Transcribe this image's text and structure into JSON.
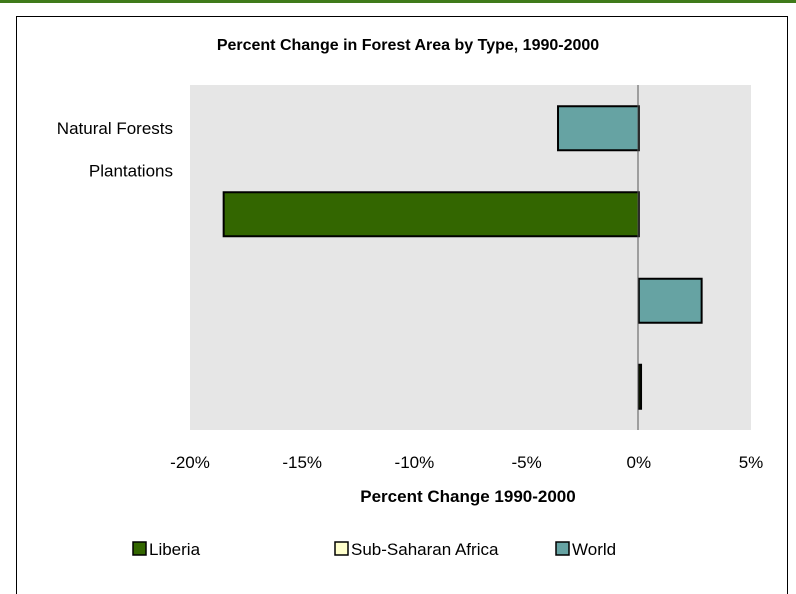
{
  "colors": {
    "plot_bg": "#e6e6e6",
    "liberia": "#336600",
    "ssa": "#ffffcc",
    "world": "#66a3a3",
    "accent_bar": "#3f7a1a"
  },
  "chart_data": {
    "type": "bar",
    "orientation": "horizontal",
    "title": "Percent Change in Forest Area by Type, 1990-2000",
    "xlabel": "Percent Change 1990-2000",
    "ylabel": "",
    "categories": [
      "Natural Forests",
      "Plantations"
    ],
    "xlim": [
      -20,
      5
    ],
    "xticks": [
      -20,
      -15,
      -10,
      -5,
      0,
      5
    ],
    "xtick_labels": [
      "-20%",
      "-15%",
      "-10%",
      "-5%",
      "0%",
      "5%"
    ],
    "grid": false,
    "legend_position": "bottom",
    "series": [
      {
        "name": "Liberia",
        "values": [
          -18.5,
          0.1
        ],
        "color": "#336600"
      },
      {
        "name": "Sub-Saharan Africa",
        "values": [
          0,
          0
        ],
        "color": "#ffffcc"
      },
      {
        "name": "World",
        "values": [
          -3.6,
          2.8
        ],
        "color": "#66a3a3"
      }
    ]
  }
}
